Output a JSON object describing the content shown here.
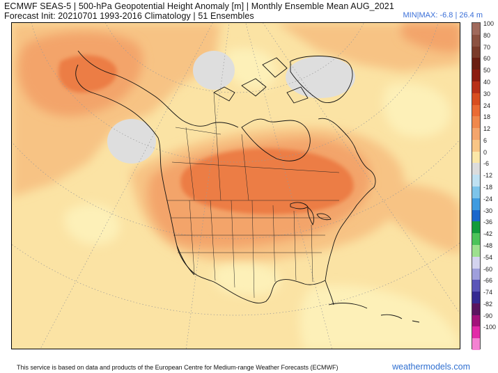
{
  "header": {
    "line1": "ECMWF SEAS-5 | 500-hPa Geopotential Height Anomaly [m] | Monthly Ensemble Mean AUG_2021",
    "line2": "Forecast Init: 20210701    1993-2016 Climatology | 51 Ensembles",
    "minmax": "MIN|MAX: -6.8 | 26.4 m"
  },
  "colorbar": {
    "levels": [
      {
        "label": "100",
        "color": "#a06a5c"
      },
      {
        "label": "80",
        "color": "#8c5241"
      },
      {
        "label": "70",
        "color": "#7a3b2a"
      },
      {
        "label": "60",
        "color": "#6a1e12"
      },
      {
        "label": "50",
        "color": "#8c1c10"
      },
      {
        "label": "40",
        "color": "#b83018"
      },
      {
        "label": "30",
        "color": "#d84e20"
      },
      {
        "label": "24",
        "color": "#ea6b34"
      },
      {
        "label": "18",
        "color": "#f0884c"
      },
      {
        "label": "12",
        "color": "#f4a56c"
      },
      {
        "label": "6",
        "color": "#f8c586"
      },
      {
        "label": "0",
        "color": "#fbe7a8"
      },
      {
        "label": "-6",
        "color": "#dcdcdc"
      },
      {
        "label": "-12",
        "color": "#bfe1f2"
      },
      {
        "label": "-18",
        "color": "#7dc4ea"
      },
      {
        "label": "-24",
        "color": "#3f9be0"
      },
      {
        "label": "-30",
        "color": "#1b66cc"
      },
      {
        "label": "-36",
        "color": "#129b3c"
      },
      {
        "label": "-42",
        "color": "#4cc35a"
      },
      {
        "label": "-48",
        "color": "#9de08e"
      },
      {
        "label": "-54",
        "color": "#d3d3ef"
      },
      {
        "label": "-60",
        "color": "#9f9fdc"
      },
      {
        "label": "-66",
        "color": "#5b55b8"
      },
      {
        "label": "-74",
        "color": "#352a92"
      },
      {
        "label": "-82",
        "color": "#5a1560"
      },
      {
        "label": "-90",
        "color": "#a2127a"
      },
      {
        "label": "-100",
        "color": "#e22aa8"
      },
      {
        "label": "",
        "color": "#f482d2"
      }
    ]
  },
  "footer": {
    "credit": "This service is based on data and products of the European Centre for Medium-range Weather Forecasts (ECMWF)",
    "brand": "weathermodels.com"
  },
  "colors": {
    "background": "#fbe3a4",
    "light_orange": "#f7c384",
    "mid_orange": "#f3a46a",
    "strong_orange": "#ec7d44",
    "neutral_gray": "#dedede",
    "pale_yellow": "#fdf0b8"
  }
}
